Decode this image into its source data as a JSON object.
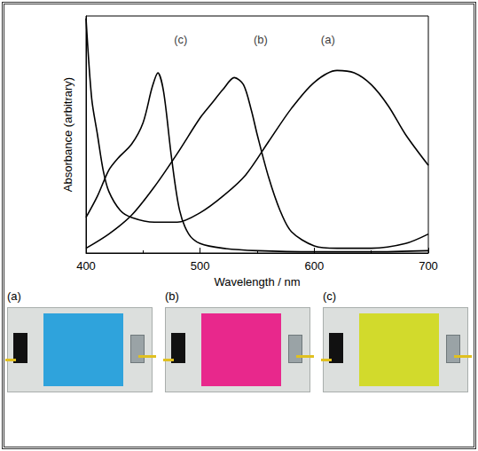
{
  "chart_data": {
    "type": "line",
    "xlabel": "Wavelength / nm",
    "ylabel": "Absorbance (arbitrary)",
    "xlim": [
      400,
      700
    ],
    "xticks": [
      400,
      500,
      600,
      700
    ],
    "ylim": [
      0,
      1
    ],
    "tick_labels": "x",
    "grid": false,
    "marker": "none",
    "line_style": "solid",
    "series": [
      {
        "name": "(a)",
        "color": "#000000",
        "label_position": [
          612,
          0.9
        ],
        "x": [
          400,
          405,
          410,
          415,
          420,
          430,
          440,
          460,
          480,
          500,
          520,
          540,
          560,
          580,
          600,
          620,
          635,
          650,
          665,
          680,
          700
        ],
        "values": [
          0.99,
          0.65,
          0.5,
          0.35,
          0.26,
          0.18,
          0.15,
          0.13,
          0.13,
          0.17,
          0.24,
          0.33,
          0.47,
          0.61,
          0.72,
          0.77,
          0.76,
          0.71,
          0.62,
          0.5,
          0.37
        ]
      },
      {
        "name": "(b)",
        "color": "#000000",
        "label_position": [
          553,
          0.9
        ],
        "x": [
          400,
          420,
          440,
          460,
          480,
          500,
          510,
          520,
          530,
          538,
          545,
          550,
          560,
          570,
          580,
          600,
          620,
          650,
          680,
          700
        ],
        "values": [
          0.02,
          0.08,
          0.16,
          0.28,
          0.42,
          0.57,
          0.63,
          0.69,
          0.74,
          0.71,
          0.6,
          0.5,
          0.32,
          0.18,
          0.09,
          0.03,
          0.02,
          0.02,
          0.04,
          0.08
        ]
      },
      {
        "name": "(c)",
        "color": "#000000",
        "label_position": [
          483,
          0.9
        ],
        "x": [
          400,
          410,
          420,
          428,
          440,
          450,
          458,
          463,
          468,
          475,
          482,
          490,
          500,
          520,
          550,
          600,
          650,
          700
        ],
        "values": [
          0.15,
          0.24,
          0.35,
          0.4,
          0.46,
          0.55,
          0.7,
          0.76,
          0.68,
          0.4,
          0.18,
          0.08,
          0.04,
          0.02,
          0.01,
          0.005,
          0.005,
          0.01
        ]
      }
    ]
  },
  "photos": [
    {
      "label": "(a)",
      "color": "#2fa3dc"
    },
    {
      "label": "(b)",
      "color": "#e8288c"
    },
    {
      "label": "(c)",
      "color": "#d2da2c"
    }
  ]
}
